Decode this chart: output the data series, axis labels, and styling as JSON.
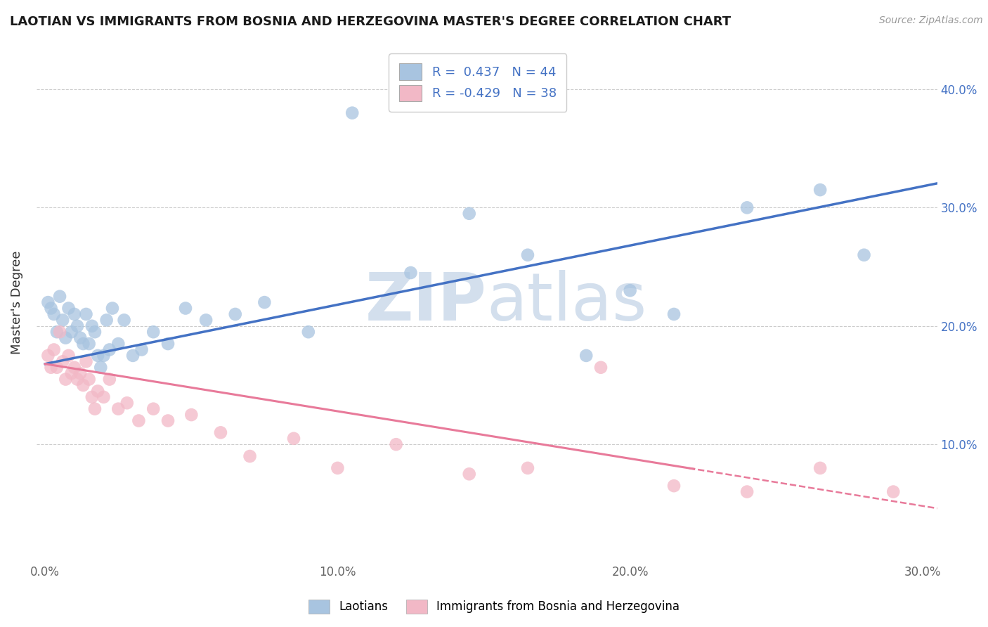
{
  "title": "LAOTIAN VS IMMIGRANTS FROM BOSNIA AND HERZEGOVINA MASTER'S DEGREE CORRELATION CHART",
  "source": "Source: ZipAtlas.com",
  "ylabel": "Master's Degree",
  "xlim": [
    -0.003,
    0.305
  ],
  "ylim": [
    0.0,
    0.44
  ],
  "xticks": [
    0.0,
    0.05,
    0.1,
    0.15,
    0.2,
    0.25,
    0.3
  ],
  "xtick_labels": [
    "0.0%",
    "",
    "10.0%",
    "",
    "20.0%",
    "",
    "30.0%"
  ],
  "yticks": [
    0.1,
    0.2,
    0.3,
    0.4
  ],
  "ytick_labels": [
    "10.0%",
    "20.0%",
    "30.0%",
    "40.0%"
  ],
  "blue_R": 0.437,
  "blue_N": 44,
  "pink_R": -0.429,
  "pink_N": 38,
  "blue_color": "#a8c4e0",
  "pink_color": "#f2b8c6",
  "blue_line_color": "#4472c4",
  "pink_line_color": "#e87a9a",
  "watermark_color": "#ccdaea",
  "blue_scatter_x": [
    0.001,
    0.002,
    0.003,
    0.004,
    0.005,
    0.006,
    0.007,
    0.008,
    0.009,
    0.01,
    0.011,
    0.012,
    0.013,
    0.014,
    0.015,
    0.016,
    0.017,
    0.018,
    0.019,
    0.02,
    0.021,
    0.022,
    0.023,
    0.025,
    0.027,
    0.03,
    0.033,
    0.037,
    0.042,
    0.048,
    0.055,
    0.065,
    0.075,
    0.09,
    0.105,
    0.125,
    0.145,
    0.165,
    0.185,
    0.2,
    0.215,
    0.24,
    0.265,
    0.28
  ],
  "blue_scatter_y": [
    0.22,
    0.215,
    0.21,
    0.195,
    0.225,
    0.205,
    0.19,
    0.215,
    0.195,
    0.21,
    0.2,
    0.19,
    0.185,
    0.21,
    0.185,
    0.2,
    0.195,
    0.175,
    0.165,
    0.175,
    0.205,
    0.18,
    0.215,
    0.185,
    0.205,
    0.175,
    0.18,
    0.195,
    0.185,
    0.215,
    0.205,
    0.21,
    0.22,
    0.195,
    0.38,
    0.245,
    0.295,
    0.26,
    0.175,
    0.23,
    0.21,
    0.3,
    0.315,
    0.26
  ],
  "pink_scatter_x": [
    0.001,
    0.002,
    0.003,
    0.004,
    0.005,
    0.006,
    0.007,
    0.008,
    0.009,
    0.01,
    0.011,
    0.012,
    0.013,
    0.014,
    0.015,
    0.016,
    0.017,
    0.018,
    0.02,
    0.022,
    0.025,
    0.028,
    0.032,
    0.037,
    0.042,
    0.05,
    0.06,
    0.07,
    0.085,
    0.1,
    0.12,
    0.145,
    0.165,
    0.19,
    0.215,
    0.24,
    0.265,
    0.29
  ],
  "pink_scatter_y": [
    0.175,
    0.165,
    0.18,
    0.165,
    0.195,
    0.17,
    0.155,
    0.175,
    0.16,
    0.165,
    0.155,
    0.16,
    0.15,
    0.17,
    0.155,
    0.14,
    0.13,
    0.145,
    0.14,
    0.155,
    0.13,
    0.135,
    0.12,
    0.13,
    0.12,
    0.125,
    0.11,
    0.09,
    0.105,
    0.08,
    0.1,
    0.075,
    0.08,
    0.165,
    0.065,
    0.06,
    0.08,
    0.06
  ]
}
